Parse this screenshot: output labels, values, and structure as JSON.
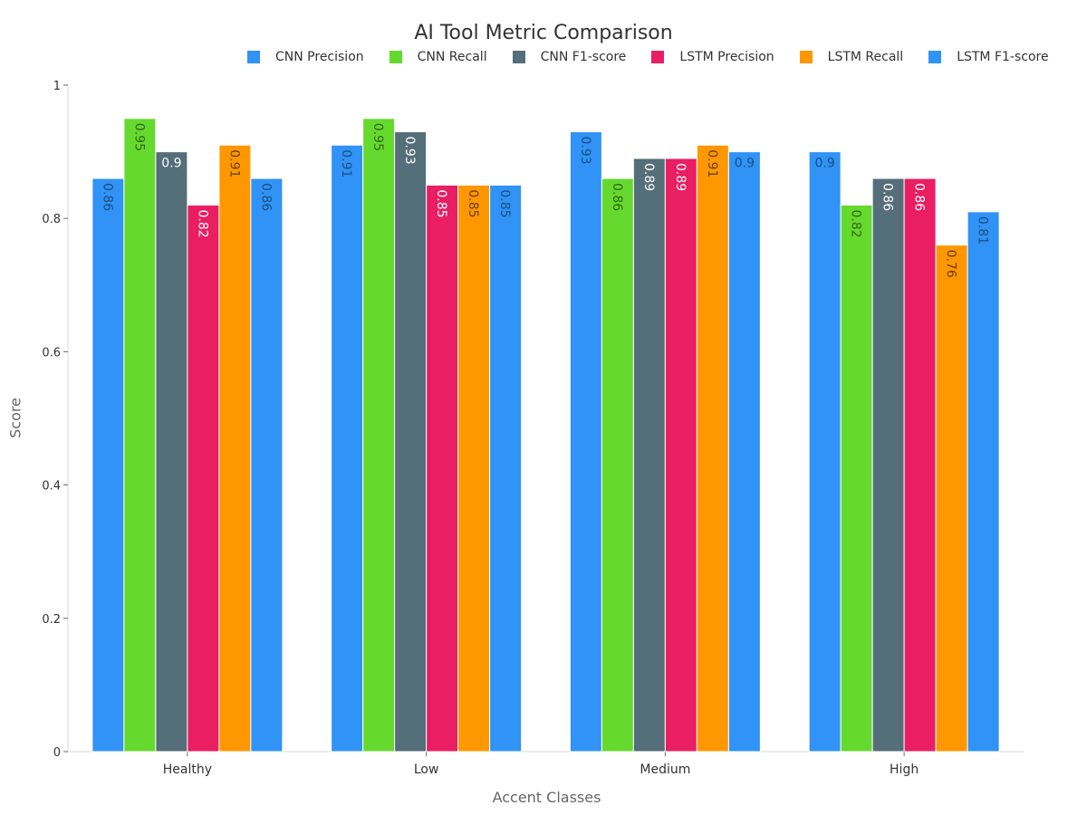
{
  "chart_data": {
    "type": "bar",
    "title": "AI Tool Metric Comparison",
    "xlabel": "Accent Classes",
    "ylabel": "Score",
    "ylim": [
      0,
      1
    ],
    "yticks": [
      "0",
      "0.2",
      "0.4",
      "0.6",
      "0.8",
      "1"
    ],
    "categories": [
      "Healthy",
      "Low",
      "Medium",
      "High"
    ],
    "legend_position": "top",
    "grid": false,
    "series": [
      {
        "name": "CNN Precision",
        "color": "#3093F5",
        "label_color": "#1a4f85",
        "values": [
          0.86,
          0.91,
          0.93,
          0.9
        ]
      },
      {
        "name": "CNN Recall",
        "color": "#66D92E",
        "label_color": "#2f6a12",
        "values": [
          0.95,
          0.95,
          0.86,
          0.82
        ]
      },
      {
        "name": "CNN F1-score",
        "color": "#546E7A",
        "label_color": "#ffffff",
        "values": [
          0.9,
          0.93,
          0.89,
          0.86
        ]
      },
      {
        "name": "LSTM Precision",
        "color": "#E91E63",
        "label_color": "#ffffff",
        "values": [
          0.82,
          0.85,
          0.89,
          0.86
        ]
      },
      {
        "name": "LSTM Recall",
        "color": "#FF9800",
        "label_color": "#6b3f00",
        "values": [
          0.91,
          0.85,
          0.91,
          0.76
        ]
      },
      {
        "name": "LSTM F1-score",
        "color": "#3093F5",
        "label_color": "#1a4f85",
        "values": [
          0.86,
          0.85,
          0.9,
          0.81
        ]
      }
    ],
    "label_orientation": [
      [
        "vertical",
        "vertical",
        "horizontal",
        "vertical",
        "vertical",
        "vertical"
      ],
      [
        "vertical",
        "vertical",
        "vertical",
        "vertical",
        "vertical",
        "vertical"
      ],
      [
        "vertical",
        "vertical",
        "vertical",
        "vertical",
        "vertical",
        "horizontal"
      ],
      [
        "horizontal",
        "vertical",
        "vertical",
        "vertical",
        "vertical",
        "vertical"
      ]
    ]
  }
}
